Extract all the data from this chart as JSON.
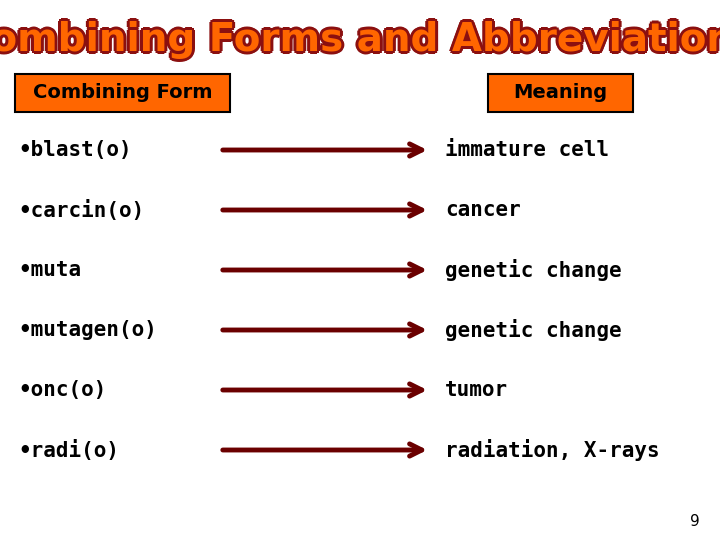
{
  "title": "Combining Forms and Abbreviations",
  "title_color": "#FF6600",
  "title_outline_color": "#8B1010",
  "bg_color": "#FFFFFF",
  "header_bg": "#FF6600",
  "header_text_color": "#000000",
  "header_left": "Combining Form",
  "header_right": "Meaning",
  "rows": [
    {
      "left": "•blast(o)",
      "right": "immature cell"
    },
    {
      "left": "•carcin(o)",
      "right": "cancer"
    },
    {
      "left": "•muta",
      "right": "genetic change"
    },
    {
      "left": "•mutagen(o)",
      "right": "genetic change"
    },
    {
      "left": "•onc(o)",
      "right": "tumor"
    },
    {
      "left": "•radi(o)",
      "right": "radiation, X-rays"
    }
  ],
  "arrow_color": "#6B0000",
  "text_color": "#000000",
  "page_number": "9",
  "title_fontsize": 28,
  "header_fontsize": 14,
  "row_fontsize": 15
}
